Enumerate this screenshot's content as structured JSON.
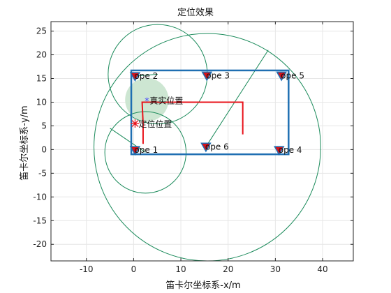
{
  "chart_data": {
    "type": "scatter",
    "title": "定位效果",
    "xlabel": "笛卡尔坐标系-x/m",
    "ylabel": "笛卡尔坐标系-y/m",
    "xlim": [
      -17.5,
      46.5
    ],
    "ylim": [
      -23.5,
      27
    ],
    "xticks": [
      -10,
      0,
      10,
      20,
      30,
      40
    ],
    "yticks": [
      -20,
      -15,
      -10,
      -5,
      0,
      5,
      10,
      15,
      20,
      25
    ],
    "grid": true,
    "colors": {
      "frame": "#1f6fb2",
      "circle": "#1a8a5a",
      "path": "#e8121a",
      "anchor_fill": "#d8121a",
      "anchor_edge": "#1f6fb2",
      "blob": "#cde6d2",
      "true_marker": "#3b3bff",
      "est_marker": "#e8121a",
      "grid": "#e6e6e6",
      "axis": "#262626"
    },
    "anchors": [
      {
        "label": "ope 1",
        "x": 0.3,
        "y": -0.1
      },
      {
        "label": "ope 2",
        "x": 0.3,
        "y": 15.5
      },
      {
        "label": "ope 3",
        "x": 15.5,
        "y": 15.6
      },
      {
        "label": "ope 4",
        "x": 30.8,
        "y": -0.1
      },
      {
        "label": "ope 5",
        "x": 31.3,
        "y": 15.6
      },
      {
        "label": "ope 6",
        "x": 15.3,
        "y": 0.6
      }
    ],
    "rectangle": {
      "x0": -0.5,
      "x1": 32.8,
      "y0": -1,
      "y1": 16.7
    },
    "path": {
      "x": [
        2.0,
        2.0,
        1.8,
        23.1,
        23.1
      ],
      "y": [
        1.2,
        5.5,
        10.0,
        10.0,
        3.2
      ]
    },
    "circles": [
      {
        "cx": 5.1,
        "cy": 15.9,
        "r": 10.5
      },
      {
        "cx": 2.5,
        "cy": -0.6,
        "r": 8.6
      },
      {
        "cx": 15.6,
        "cy": 0.5,
        "r": 24.0
      }
    ],
    "radius_lines": [
      {
        "x": [
          0.3,
          5.1
        ],
        "y": [
          15.5,
          15.9
        ]
      },
      {
        "x": [
          -5.0,
          2.5
        ],
        "y": [
          4.5,
          -0.6
        ]
      },
      {
        "x": [
          15.3,
          28.5
        ],
        "y": [
          0.6,
          21.0
        ]
      }
    ],
    "blob": {
      "cx": 2.8,
      "cy": 10.5,
      "r": 4.6
    },
    "true_position": {
      "label": "真实位置",
      "x": 2.8,
      "y": 10.3
    },
    "estimated_position": {
      "label": "定位位置",
      "x": 0.3,
      "y": 5.5
    }
  }
}
